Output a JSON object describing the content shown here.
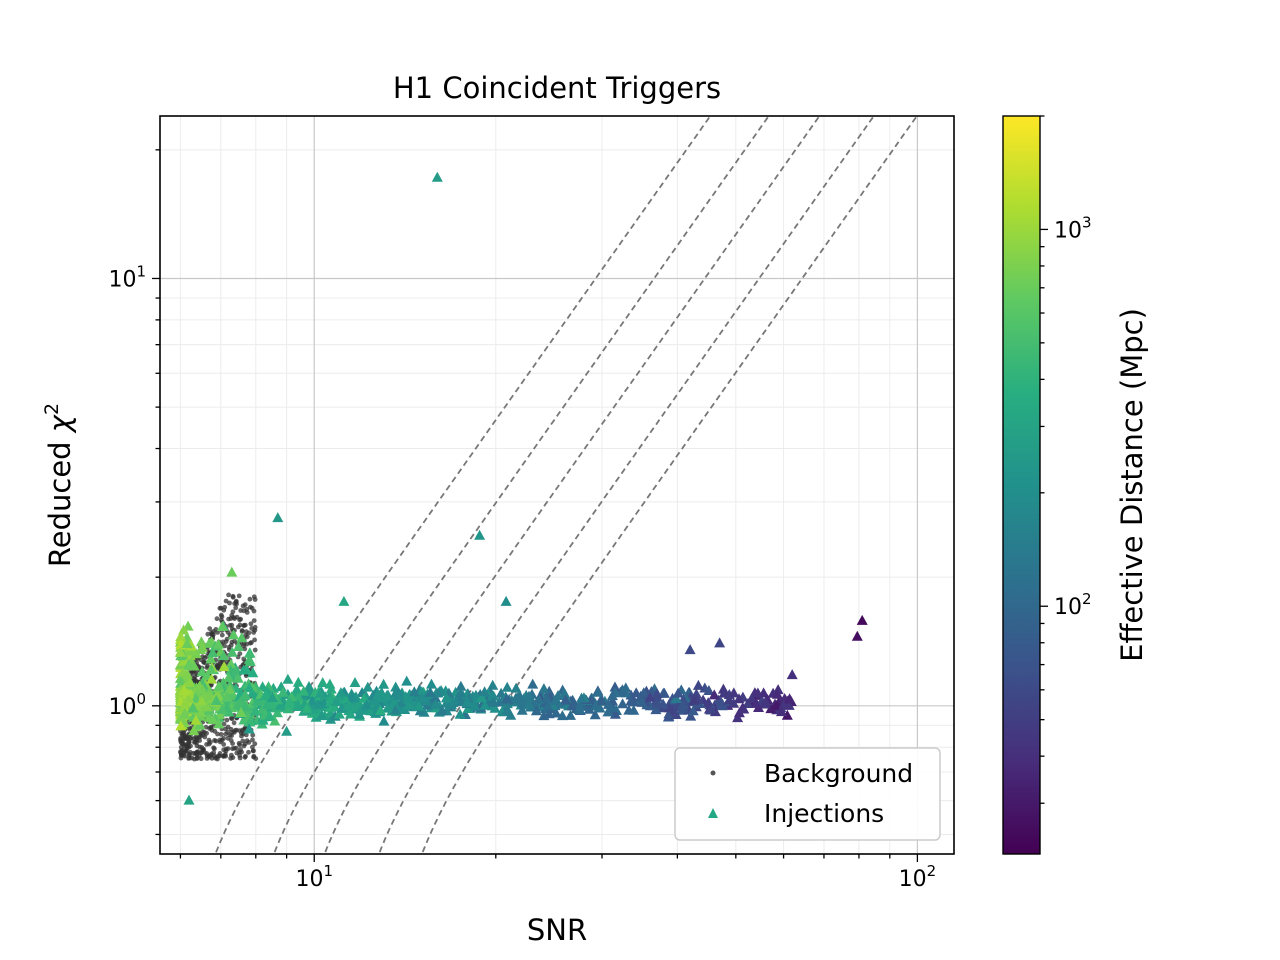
{
  "chart_data": {
    "type": "scatter",
    "title": "H1 Coincident Triggers",
    "xlabel": "SNR",
    "ylabel_prefix": "Reduced ",
    "ylabel_symbol": "χ",
    "ylabel_exp": "2",
    "xscale": "log",
    "yscale": "log",
    "xlim": [
      5.55,
      115
    ],
    "ylim": [
      0.45,
      24
    ],
    "x_ticks": [
      {
        "value": 10,
        "base": "10",
        "exp": "1"
      },
      {
        "value": 100,
        "base": "10",
        "exp": "2"
      }
    ],
    "y_ticks": [
      {
        "value": 1,
        "base": "10",
        "exp": "0"
      },
      {
        "value": 10,
        "base": "10",
        "exp": "1"
      }
    ],
    "grid": true,
    "minor_grid": true,
    "legend": {
      "position": "lower-right",
      "entries": [
        {
          "label": "Background",
          "marker": "dot",
          "color": "#555555"
        },
        {
          "label": "Injections",
          "marker": "triangle",
          "color": "#22a884"
        }
      ]
    },
    "colorbar": {
      "label": "Effective Distance (Mpc)",
      "scale": "log",
      "range": [
        22,
        2000
      ],
      "colormap": "viridis",
      "ticks": [
        {
          "value": 100,
          "base": "10",
          "exp": "2"
        },
        {
          "value": 1000,
          "base": "10",
          "exp": "3"
        }
      ]
    },
    "threshold_lines": [
      {
        "snr_threshold": 6.0
      },
      {
        "snr_threshold": 7.5
      },
      {
        "snr_threshold": 9.1
      },
      {
        "snr_threshold": 11.2
      },
      {
        "snr_threshold": 13.2
      }
    ],
    "background": {
      "color": "#333333",
      "snr_range": [
        6.0,
        8.0
      ],
      "rchisq_range": [
        0.75,
        1.82
      ]
    },
    "injections_highlight": [
      {
        "snr": 16.0,
        "rchisq": 17.2,
        "eff_distance": 260
      },
      {
        "snr": 8.7,
        "rchisq": 2.75,
        "eff_distance": 240
      },
      {
        "snr": 18.8,
        "rchisq": 2.5,
        "eff_distance": 230
      },
      {
        "snr": 7.3,
        "rchisq": 2.05,
        "eff_distance": 700
      },
      {
        "snr": 11.2,
        "rchisq": 1.75,
        "eff_distance": 320
      },
      {
        "snr": 20.8,
        "rchisq": 1.75,
        "eff_distance": 200
      },
      {
        "snr": 81.0,
        "rchisq": 1.58,
        "eff_distance": 24
      },
      {
        "snr": 79.5,
        "rchisq": 1.45,
        "eff_distance": 26
      },
      {
        "snr": 62.0,
        "rchisq": 1.18,
        "eff_distance": 40
      },
      {
        "snr": 56.0,
        "rchisq": 1.02,
        "eff_distance": 45
      },
      {
        "snr": 47.0,
        "rchisq": 1.4,
        "eff_distance": 55
      },
      {
        "snr": 42.0,
        "rchisq": 1.35,
        "eff_distance": 60
      },
      {
        "snr": 6.2,
        "rchisq": 0.6,
        "eff_distance": 300
      },
      {
        "snr": 7.8,
        "rchisq": 0.88,
        "eff_distance": 250
      },
      {
        "snr": 9.0,
        "rchisq": 0.87,
        "eff_distance": 260
      }
    ],
    "injection_cloud": {
      "snr_range": [
        6.0,
        62.0
      ],
      "rchisq_center": 1.02,
      "eff_distance_vs_snr": [
        {
          "snr": 6,
          "eff_distance": 900
        },
        {
          "snr": 8,
          "eff_distance": 420
        },
        {
          "snr": 12,
          "eff_distance": 250
        },
        {
          "snr": 20,
          "eff_distance": 150
        },
        {
          "snr": 35,
          "eff_distance": 80
        },
        {
          "snr": 60,
          "eff_distance": 40
        }
      ]
    }
  }
}
